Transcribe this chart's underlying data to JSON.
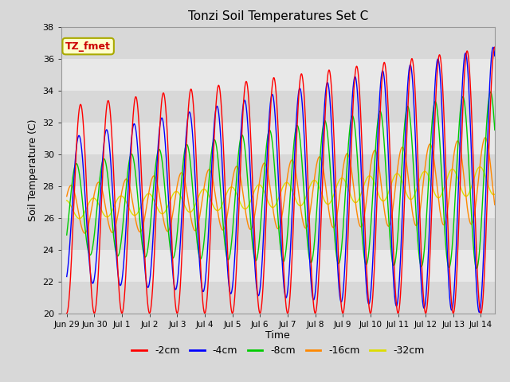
{
  "title": "Tonzi Soil Temperatures Set C",
  "xlabel": "Time",
  "ylabel": "Soil Temperature (C)",
  "ylim": [
    20,
    38
  ],
  "yticks": [
    20,
    22,
    24,
    26,
    28,
    30,
    32,
    34,
    36,
    38
  ],
  "xtick_labels": [
    "Jun 29",
    "Jun 30",
    "Jul 1",
    "Jul 2",
    "Jul 3",
    "Jul 4",
    "Jul 5",
    "Jul 6",
    "Jul 7",
    "Jul 8",
    "Jul 9",
    "Jul 10",
    "Jul 11",
    "Jul 12",
    "Jul 13",
    "Jul 14"
  ],
  "xtick_positions": [
    0,
    1,
    2,
    3,
    4,
    5,
    6,
    7,
    8,
    9,
    10,
    11,
    12,
    13,
    14,
    15
  ],
  "colors": {
    "-2cm": "#ff0000",
    "-4cm": "#0000ff",
    "-8cm": "#00cc00",
    "-16cm": "#ff8800",
    "-32cm": "#dddd00"
  },
  "legend_labels": [
    "-2cm",
    "-4cm",
    "-8cm",
    "-16cm",
    "-32cm"
  ],
  "annotation_text": "TZ_fmet",
  "bg_color": "#d8d8d8",
  "band_light": "#e8e8e8",
  "band_dark": "#d0d0d0",
  "legend_bg": "#ffffff",
  "linewidth": 1.0,
  "n_points": 3720,
  "num_days": 15.5,
  "mean_base": 26.5,
  "mean_slope": 0.12,
  "amp_2cm_base": 6.5,
  "amp_2cm_slope": 0.12,
  "amp_4cm_base": 4.5,
  "amp_4cm_slope": 0.25,
  "amp_8cm_base": 2.8,
  "amp_8cm_slope": 0.18,
  "amp_16cm_base": 1.5,
  "amp_16cm_slope": 0.08,
  "amp_32cm_base": 0.6,
  "amp_32cm_slope": 0.02,
  "phase_2cm": -1.5708,
  "phase_4cm": -1.2,
  "phase_8cm": -0.6,
  "phase_16cm": 0.6,
  "phase_32cm": 1.8,
  "min_base_2cm": 21.5,
  "min_base_4cm": 22.5,
  "min_base_8cm": 22.8,
  "min_base_16cm": 24.0,
  "min_base_32cm": 23.2
}
